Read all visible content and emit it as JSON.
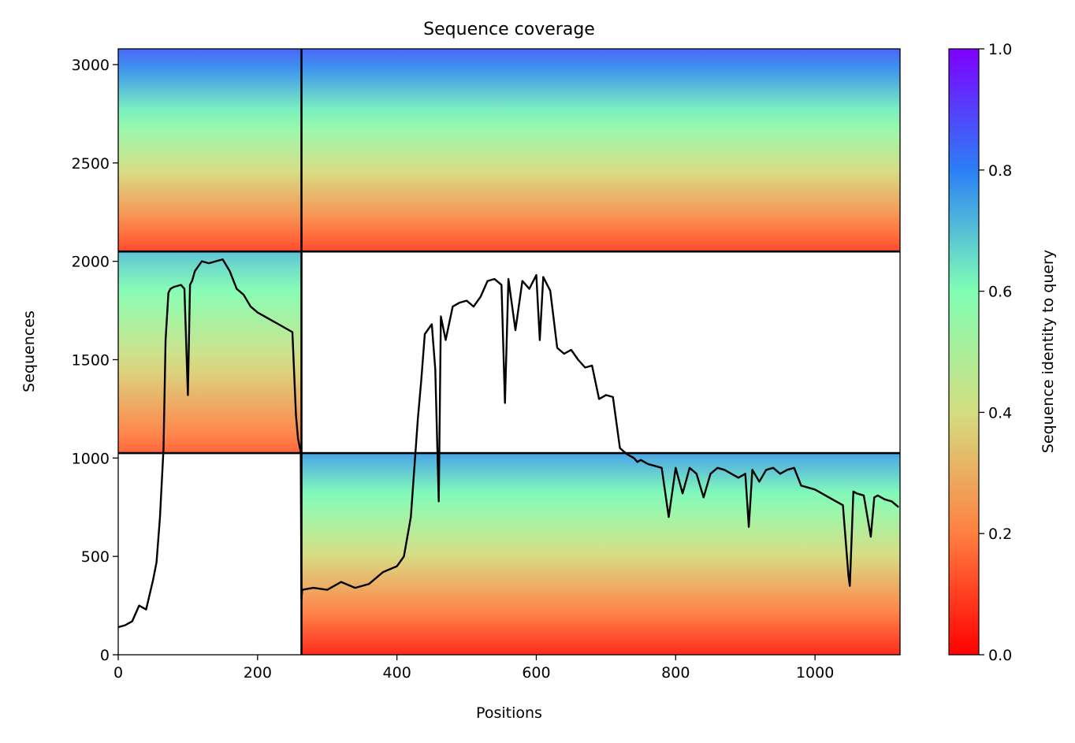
{
  "chart_data": {
    "type": "heatmap",
    "title": "Sequence coverage",
    "xlabel": "Positions",
    "ylabel": "Sequences",
    "xlim": [
      0,
      1122
    ],
    "ylim": [
      0,
      3080
    ],
    "xticks": [
      0,
      200,
      400,
      600,
      800,
      1000
    ],
    "yticks": [
      0,
      500,
      1000,
      1500,
      2000,
      2500,
      3000
    ],
    "grid": false,
    "colorbar": {
      "label": "Sequence identity to query",
      "range": [
        0.0,
        1.0
      ],
      "ticks": [
        "0.0",
        "0.2",
        "0.4",
        "0.6",
        "0.8",
        "1.0"
      ],
      "colormap": "rainbow_r",
      "colors": [
        "#ff0000",
        "#ff7f41",
        "#d4dd80",
        "#80ffb4",
        "#2b7ff6",
        "#7f00ff"
      ]
    },
    "chain_boundaries_x": [
      263
    ],
    "chain_boundaries_y": [
      1025,
      2050
    ],
    "blocks": [
      {
        "x": [
          0,
          263
        ],
        "y": [
          2050,
          3080
        ],
        "identity_top": 0.85,
        "identity_bottom": 0.1
      },
      {
        "x": [
          263,
          1122
        ],
        "y": [
          2050,
          3080
        ],
        "identity_top": 0.85,
        "identity_bottom": 0.1
      },
      {
        "x": [
          0,
          263
        ],
        "y": [
          1025,
          2050
        ],
        "identity_top": 0.7,
        "identity_bottom": 0.15
      },
      {
        "x": [
          263,
          1122
        ],
        "y": [
          0,
          1025
        ],
        "identity_top": 0.75,
        "identity_bottom": 0.05
      }
    ],
    "coverage_line": {
      "color": "#000000",
      "x": [
        0,
        10,
        20,
        30,
        40,
        50,
        55,
        60,
        65,
        68,
        72,
        75,
        80,
        90,
        95,
        100,
        103,
        106,
        110,
        120,
        130,
        140,
        150,
        160,
        170,
        180,
        185,
        190,
        200,
        210,
        220,
        230,
        240,
        250,
        255,
        258,
        262,
        263,
        264,
        280,
        300,
        320,
        340,
        360,
        380,
        400,
        410,
        420,
        430,
        435,
        440,
        450,
        455,
        460,
        463,
        470,
        480,
        490,
        500,
        510,
        520,
        530,
        540,
        550,
        555,
        560,
        570,
        580,
        590,
        600,
        605,
        610,
        620,
        630,
        640,
        650,
        660,
        670,
        680,
        690,
        700,
        710,
        720,
        730,
        740,
        745,
        750,
        760,
        770,
        780,
        790,
        800,
        810,
        820,
        830,
        840,
        850,
        860,
        870,
        880,
        890,
        900,
        905,
        910,
        920,
        930,
        940,
        950,
        960,
        970,
        980,
        990,
        1000,
        1010,
        1020,
        1030,
        1040,
        1048,
        1050,
        1055,
        1060,
        1070,
        1080,
        1085,
        1090,
        1100,
        1110,
        1120
      ],
      "y": [
        140,
        150,
        170,
        250,
        230,
        380,
        470,
        700,
        1050,
        1600,
        1840,
        1860,
        1870,
        1880,
        1860,
        1320,
        1880,
        1900,
        1950,
        2000,
        1990,
        2000,
        2010,
        1950,
        1860,
        1830,
        1800,
        1770,
        1740,
        1720,
        1700,
        1680,
        1660,
        1640,
        1220,
        1100,
        1030,
        280,
        330,
        340,
        330,
        370,
        340,
        360,
        420,
        450,
        500,
        700,
        1200,
        1400,
        1630,
        1680,
        1450,
        780,
        1720,
        1600,
        1770,
        1790,
        1800,
        1770,
        1820,
        1900,
        1910,
        1880,
        1280,
        1910,
        1650,
        1900,
        1860,
        1930,
        1600,
        1920,
        1850,
        1560,
        1530,
        1550,
        1500,
        1460,
        1470,
        1300,
        1320,
        1310,
        1050,
        1020,
        1000,
        980,
        990,
        970,
        960,
        950,
        700,
        950,
        820,
        950,
        920,
        800,
        920,
        950,
        940,
        920,
        900,
        920,
        650,
        940,
        880,
        940,
        950,
        920,
        940,
        950,
        860,
        850,
        840,
        820,
        800,
        780,
        760,
        400,
        350,
        830,
        820,
        810,
        600,
        800,
        810,
        790,
        780,
        750
      ]
    }
  }
}
